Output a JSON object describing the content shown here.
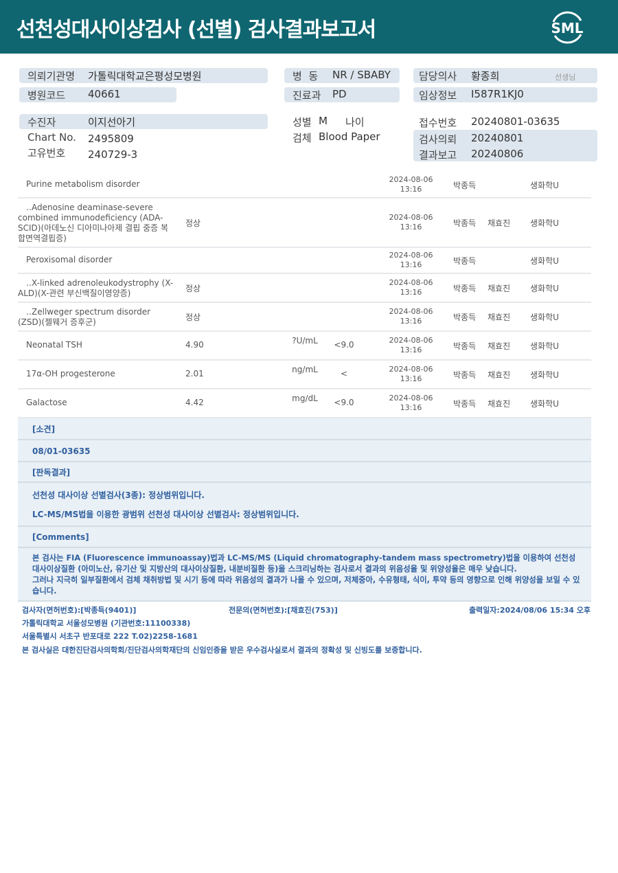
{
  "header": {
    "title": "선천성대사이상검사 (선별) 검사결과보고서",
    "logo": "SML",
    "bg_color": "#0f6670"
  },
  "info": {
    "institution_label": "의뢰기관명",
    "institution": "가톨릭대학교은평성모병원",
    "hospital_code_label": "병원코드",
    "hospital_code": "40661",
    "ward_label": "병  동",
    "ward": "NR / SBABY",
    "dept_label": "진료과",
    "dept": "PD",
    "doctor_label": "담당의사",
    "doctor": "황종희",
    "doctor_suffix": "선생님",
    "clinical_label": "임상정보",
    "clinical": "I587R1KJ0",
    "patient_label": "수진자",
    "patient": "이지선아기",
    "chart_label": "Chart No.",
    "chart": "2495809",
    "unique_label": "고유번호",
    "unique": "240729-3",
    "sex_label": "성별",
    "sex": "M",
    "age_label": "나이",
    "specimen_label": "검체",
    "specimen": "Blood Paper",
    "receipt_label": "접수번호",
    "receipt": "20240801-03635",
    "request_label": "검사의뢰",
    "request": "20240801",
    "report_label": "결과보고",
    "report": "20240806"
  },
  "results": [
    {
      "name": "Purine metabolism disorder",
      "result": "",
      "unit": "",
      "ref": "",
      "date": "2024-08-06",
      "time": "13:16",
      "tester": "박종득",
      "confirmer": "",
      "dept": "생화학U"
    },
    {
      "name": "‥Adenosine deaminase-severe combined immunodeficiency (ADA-SCID)(아데노신 디아미나아제 결핍 중증 복합면역결핍증)",
      "result": "정상",
      "unit": "",
      "ref": "",
      "date": "2024-08-06",
      "time": "13:16",
      "tester": "박종득",
      "confirmer": "채효진",
      "dept": "생화학U"
    },
    {
      "name": "Peroxisomal disorder",
      "result": "",
      "unit": "",
      "ref": "",
      "date": "2024-08-06",
      "time": "13:16",
      "tester": "박종득",
      "confirmer": "",
      "dept": "생화학U"
    },
    {
      "name": "‥X-linked adrenoleukodystrophy (X-ALD)(X-관련 부신백질이영양증)",
      "result": "정상",
      "unit": "",
      "ref": "",
      "date": "2024-08-06",
      "time": "13:16",
      "tester": "박종득",
      "confirmer": "채효진",
      "dept": "생화학U"
    },
    {
      "name": "‥Zellweger spectrum disorder (ZSD)(젤웨거 증후군)",
      "result": "정상",
      "unit": "",
      "ref": "",
      "date": "2024-08-06",
      "time": "13:16",
      "tester": "박종득",
      "confirmer": "채효진",
      "dept": "생화학U"
    },
    {
      "name": "Neonatal TSH",
      "result": "4.90",
      "unit": "?U/mL",
      "ref": "<9.0",
      "date": "2024-08-06",
      "time": "13:16",
      "tester": "박종득",
      "confirmer": "채효진",
      "dept": "생화학U"
    },
    {
      "name": "17α-OH progesterone",
      "result": "2.01",
      "unit": "ng/mL",
      "ref": "<",
      "date": "2024-08-06",
      "time": "13:16",
      "tester": "박종득",
      "confirmer": "채효진",
      "dept": "생화학U"
    },
    {
      "name": "Galactose",
      "result": "4.42",
      "unit": "mg/dL",
      "ref": "<9.0",
      "date": "2024-08-06",
      "time": "13:16",
      "tester": "박종득",
      "confirmer": "채효진",
      "dept": "생화학U"
    }
  ],
  "sections": {
    "opinion_label": "[소견]",
    "opinion": "08/01-03635",
    "interpretation_label": "[판독결과]",
    "interp1": "선천성 대사이상 선별검사(3종): 정상범위입니다.",
    "interp2": "LC-MS/MS법을 이용한 광범위 선천성 대사이상 선별검사: 정상범위입니다.",
    "comments_label": "[Comments]",
    "comment1": "본 검사는 FIA (Fluorescence immunoassay)법과 LC-MS/MS (Liquid chromatography-tandem mass spectrometry)법을 이용하여 선천성 대사이상질환 (아미노산, 유기산 및 지방산의 대사이상질환, 내분비질환 등)을 스크리닝하는 검사로서 결과의 위음성율 및 위양성율은 매우 낮습니다.",
    "comment2": "그러나 지극히 일부질환에서 검체 채취방법 및 시기 등에 따라 위음성의 결과가 나올 수 있으며, 저체중아, 수유형태, 식이, 투약 등의 영향으로 인해 위양성을 보일 수 있습니다."
  },
  "footer": {
    "tester": "검사자(면허번호):[박종득(9401)]",
    "specialist": "전문의(면허번호):[채효진(753)]",
    "printed": "출력일자:2024/08/06 15:34 오후",
    "org": "가톨릭대학교 서울성모병원 (기관번호:11100338)",
    "address": "서울특별시 서초구 반포대로 222 T.02)2258-1681",
    "cert": "본 검사실은 대한진단검사의학회/진단검사의학재단의 신임인증을 받은 우수검사실로서 결과의 정확성 및 신빙도를 보증합니다."
  }
}
